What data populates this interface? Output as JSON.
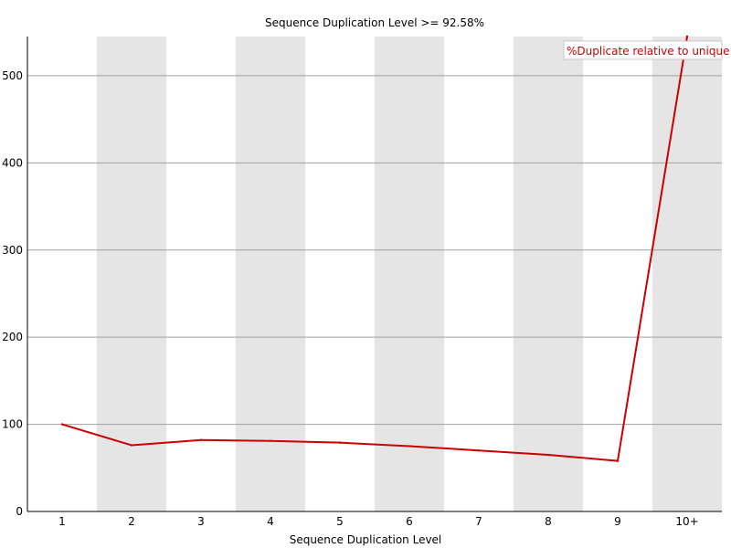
{
  "chart_data": {
    "type": "line",
    "title": "Sequence Duplication Level >= 92.58%",
    "xlabel": "Sequence Duplication Level",
    "ylabel": "",
    "categories": [
      "1",
      "2",
      "3",
      "4",
      "5",
      "6",
      "7",
      "8",
      "9",
      "10+"
    ],
    "series": [
      {
        "name": "%Duplicate relative to unique",
        "color": "#cc0000",
        "values": [
          100,
          76,
          82,
          81,
          79,
          75,
          70,
          65,
          58,
          545
        ]
      }
    ],
    "ylim": [
      0,
      545
    ],
    "yticks": [
      "0",
      "100",
      "200",
      "300",
      "400",
      "500"
    ],
    "grid": true,
    "legend_position": "top-right",
    "band_color": "#e5e5e5",
    "grid_color": "#a0a0a0"
  }
}
